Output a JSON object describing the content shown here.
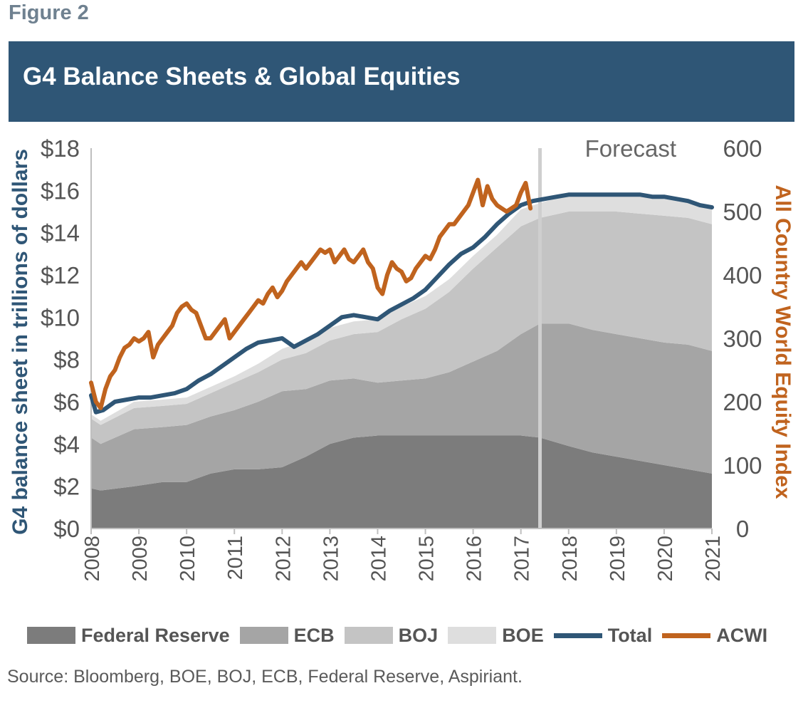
{
  "figure_label": "Figure 2",
  "title": "G4 Balance Sheets & Global Equities",
  "source": "Source: Bloomberg, BOE, BOJ, ECB, Federal Reserve, Aspiriant.",
  "chart_data": {
    "type": "area",
    "x_range": [
      2008,
      2021
    ],
    "forecast_start": 2017.4,
    "forecast_label": "Forecast",
    "left_axis": {
      "label": "G4 balance sheet in trillions of dollars",
      "range": [
        0,
        18
      ],
      "ticks": [
        "$0",
        "$2",
        "$4",
        "$6",
        "$8",
        "$10",
        "$12",
        "$14",
        "$16",
        "$18"
      ]
    },
    "right_axis": {
      "label": "All Country World Equity Index",
      "range": [
        0,
        600
      ],
      "ticks": [
        "0",
        "100",
        "200",
        "300",
        "400",
        "500",
        "600"
      ]
    },
    "x_ticks": [
      "2008",
      "2009",
      "2010",
      "2011",
      "2012",
      "2013",
      "2014",
      "2015",
      "2016",
      "2017",
      "2018",
      "2019",
      "2020",
      "2021"
    ],
    "colors": {
      "fed": "#7c7c7c",
      "ecb": "#a5a5a5",
      "boj": "#c4c4c4",
      "boe": "#dedede",
      "total": "#2f5676",
      "acwi": "#c0631e",
      "forecast_line": "#cfcfcf",
      "axis_label_left": "#2f5676",
      "axis_label_right": "#c0631e"
    },
    "series": [
      {
        "name": "Federal Reserve",
        "key": "fed",
        "kind": "stacked-area",
        "x": [
          2008.0,
          2008.2,
          2008.9,
          2009.5,
          2010.0,
          2010.5,
          2011.0,
          2011.5,
          2012.0,
          2012.5,
          2013.0,
          2013.5,
          2014.0,
          2014.5,
          2015.0,
          2015.5,
          2016.0,
          2016.5,
          2017.0,
          2017.4,
          2018.0,
          2018.5,
          2019.0,
          2019.5,
          2020.0,
          2020.5,
          2021.0
        ],
        "values": [
          1.9,
          1.8,
          2.0,
          2.2,
          2.2,
          2.6,
          2.8,
          2.8,
          2.9,
          3.4,
          4.0,
          4.3,
          4.4,
          4.4,
          4.4,
          4.4,
          4.4,
          4.4,
          4.4,
          4.3,
          3.9,
          3.6,
          3.4,
          3.2,
          3.0,
          2.8,
          2.6
        ]
      },
      {
        "name": "ECB",
        "key": "ecb",
        "kind": "stacked-area",
        "x": [
          2008.0,
          2008.2,
          2008.9,
          2009.5,
          2010.0,
          2010.5,
          2011.0,
          2011.5,
          2012.0,
          2012.5,
          2013.0,
          2013.5,
          2014.0,
          2014.5,
          2015.0,
          2015.5,
          2016.0,
          2016.5,
          2017.0,
          2017.4,
          2018.0,
          2018.5,
          2019.0,
          2019.5,
          2020.0,
          2020.5,
          2021.0
        ],
        "values": [
          2.4,
          2.2,
          2.7,
          2.6,
          2.7,
          2.7,
          2.8,
          3.2,
          3.6,
          3.2,
          3.0,
          2.8,
          2.5,
          2.6,
          2.7,
          3.0,
          3.5,
          4.0,
          4.8,
          5.4,
          5.8,
          5.8,
          5.8,
          5.8,
          5.8,
          5.9,
          5.8
        ]
      },
      {
        "name": "BOJ",
        "key": "boj",
        "kind": "stacked-area",
        "x": [
          2008.0,
          2008.2,
          2008.9,
          2009.5,
          2010.0,
          2010.5,
          2011.0,
          2011.5,
          2012.0,
          2012.5,
          2013.0,
          2013.5,
          2014.0,
          2014.5,
          2015.0,
          2015.5,
          2016.0,
          2016.5,
          2017.0,
          2017.4,
          2018.0,
          2018.5,
          2019.0,
          2019.5,
          2020.0,
          2020.5,
          2021.0
        ],
        "values": [
          0.9,
          0.9,
          1.0,
          1.0,
          1.0,
          1.1,
          1.3,
          1.4,
          1.5,
          1.7,
          1.9,
          2.1,
          2.4,
          2.9,
          3.3,
          3.8,
          4.4,
          4.9,
          5.1,
          5.0,
          5.3,
          5.6,
          5.8,
          5.9,
          6.0,
          6.0,
          6.0
        ]
      },
      {
        "name": "BOE",
        "key": "boe",
        "kind": "stacked-area",
        "x": [
          2008.0,
          2008.2,
          2008.9,
          2009.5,
          2010.0,
          2010.5,
          2011.0,
          2011.5,
          2012.0,
          2012.5,
          2013.0,
          2013.5,
          2014.0,
          2014.5,
          2015.0,
          2015.5,
          2016.0,
          2016.5,
          2017.0,
          2017.4,
          2018.0,
          2018.5,
          2019.0,
          2019.5,
          2020.0,
          2020.5,
          2021.0
        ],
        "values": [
          0.2,
          0.2,
          0.3,
          0.3,
          0.3,
          0.3,
          0.3,
          0.4,
          0.5,
          0.6,
          0.6,
          0.6,
          0.6,
          0.6,
          0.6,
          0.6,
          0.6,
          0.6,
          0.8,
          0.7,
          0.8,
          0.8,
          0.8,
          0.8,
          0.8,
          0.7,
          0.7
        ]
      },
      {
        "name": "Total",
        "key": "total",
        "kind": "line",
        "axis": "left",
        "x": [
          2008.0,
          2008.1,
          2008.25,
          2008.5,
          2008.75,
          2009.0,
          2009.25,
          2009.5,
          2009.75,
          2010.0,
          2010.25,
          2010.5,
          2010.75,
          2011.0,
          2011.25,
          2011.5,
          2011.75,
          2012.0,
          2012.25,
          2012.5,
          2012.75,
          2013.0,
          2013.25,
          2013.5,
          2013.75,
          2014.0,
          2014.25,
          2014.5,
          2014.75,
          2015.0,
          2015.25,
          2015.5,
          2015.75,
          2016.0,
          2016.25,
          2016.5,
          2016.75,
          2017.0,
          2017.25,
          2017.5,
          2017.75,
          2018.0,
          2018.25,
          2018.5,
          2018.75,
          2019.0,
          2019.25,
          2019.5,
          2019.75,
          2020.0,
          2020.25,
          2020.5,
          2020.75,
          2021.0
        ],
        "values": [
          6.3,
          5.5,
          5.6,
          6.0,
          6.1,
          6.2,
          6.2,
          6.3,
          6.4,
          6.6,
          7.0,
          7.3,
          7.7,
          8.1,
          8.5,
          8.8,
          8.9,
          9.0,
          8.6,
          8.9,
          9.2,
          9.6,
          10.0,
          10.1,
          10.0,
          9.9,
          10.3,
          10.6,
          10.9,
          11.3,
          11.9,
          12.5,
          13.0,
          13.3,
          13.8,
          14.4,
          14.9,
          15.3,
          15.5,
          15.6,
          15.7,
          15.8,
          15.8,
          15.8,
          15.8,
          15.8,
          15.8,
          15.8,
          15.7,
          15.7,
          15.6,
          15.5,
          15.3,
          15.2
        ]
      },
      {
        "name": "ACWI",
        "key": "acwi",
        "kind": "line",
        "axis": "right",
        "x": [
          2008.0,
          2008.1,
          2008.2,
          2008.3,
          2008.4,
          2008.5,
          2008.6,
          2008.7,
          2008.8,
          2008.9,
          2009.0,
          2009.1,
          2009.2,
          2009.3,
          2009.4,
          2009.5,
          2009.6,
          2009.7,
          2009.8,
          2009.9,
          2010.0,
          2010.1,
          2010.2,
          2010.3,
          2010.4,
          2010.5,
          2010.6,
          2010.7,
          2010.8,
          2010.9,
          2011.0,
          2011.1,
          2011.2,
          2011.3,
          2011.4,
          2011.5,
          2011.6,
          2011.7,
          2011.8,
          2011.9,
          2012.0,
          2012.1,
          2012.2,
          2012.3,
          2012.4,
          2012.5,
          2012.6,
          2012.7,
          2012.8,
          2012.9,
          2013.0,
          2013.1,
          2013.2,
          2013.3,
          2013.4,
          2013.5,
          2013.6,
          2013.7,
          2013.8,
          2013.9,
          2014.0,
          2014.1,
          2014.2,
          2014.3,
          2014.4,
          2014.5,
          2014.6,
          2014.7,
          2014.8,
          2014.9,
          2015.0,
          2015.1,
          2015.2,
          2015.3,
          2015.4,
          2015.5,
          2015.6,
          2015.7,
          2015.8,
          2015.9,
          2016.0,
          2016.1,
          2016.2,
          2016.3,
          2016.4,
          2016.5,
          2016.6,
          2016.7,
          2016.8,
          2016.9,
          2017.0,
          2017.1,
          2017.2
        ],
        "values": [
          230,
          200,
          190,
          220,
          240,
          250,
          270,
          285,
          290,
          300,
          295,
          300,
          310,
          270,
          290,
          300,
          310,
          320,
          340,
          350,
          355,
          345,
          340,
          320,
          300,
          300,
          310,
          320,
          330,
          300,
          310,
          320,
          330,
          340,
          350,
          360,
          355,
          370,
          380,
          365,
          375,
          390,
          400,
          410,
          420,
          410,
          420,
          430,
          440,
          435,
          440,
          420,
          430,
          440,
          425,
          420,
          430,
          440,
          420,
          410,
          380,
          370,
          400,
          420,
          410,
          405,
          390,
          395,
          410,
          420,
          430,
          425,
          440,
          460,
          470,
          480,
          480,
          490,
          500,
          510,
          530,
          550,
          510,
          540,
          520,
          510,
          505,
          500,
          505,
          510,
          530,
          545,
          505
        ]
      }
    ]
  }
}
